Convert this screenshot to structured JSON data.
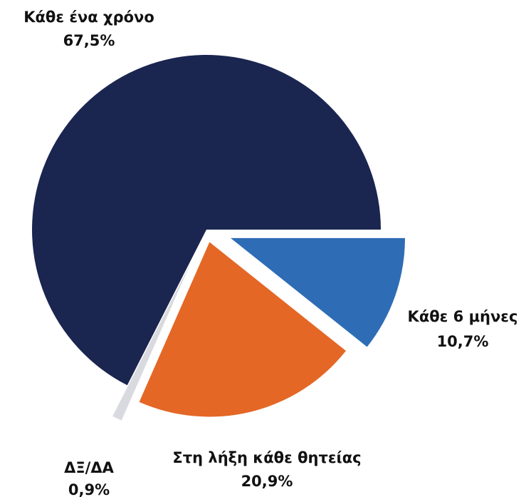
{
  "chart_data": {
    "type": "pie",
    "categories": [
      "Κάθε 6 μήνες",
      "Στη λήξη κάθε θητείας",
      "ΔΞ/ΔΑ",
      "Κάθε ένα χρόνο"
    ],
    "values": [
      10.7,
      20.9,
      0.9,
      67.5
    ],
    "value_labels": [
      "10,7%",
      "20,9%",
      "0,9%",
      "67,5%"
    ],
    "colors": [
      "#2e6db5",
      "#e46726",
      "#d9dadf",
      "#1a2550"
    ]
  }
}
